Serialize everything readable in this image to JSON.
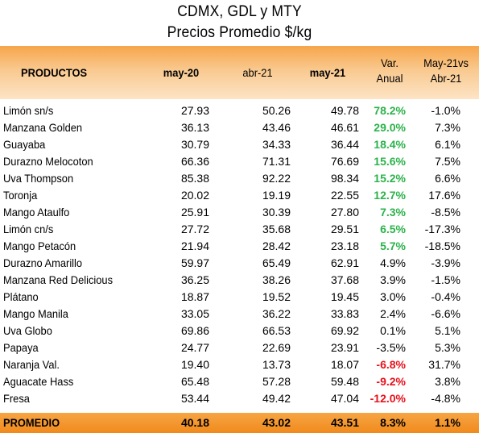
{
  "title": "CDMX, GDL y MTY",
  "subtitle": "Precios Promedio $/kg",
  "headers": {
    "products": "PRODUCTOS",
    "may20": "may-20",
    "abr21": "abr-21",
    "may21": "may-21",
    "var_line1": "Var.",
    "var_line2": "Anual",
    "mom_line1": "May-21vs",
    "mom_line2": "Abr-21"
  },
  "colors": {
    "positive": "#2bb34a",
    "negative": "#e8101a",
    "header_orange": "#f6a54a",
    "total_orange": "#f08a1c"
  },
  "rows": [
    {
      "name": "Limón sn/s",
      "may20": "27.93",
      "abr21": "50.26",
      "may21": "49.78",
      "var": "78.2%",
      "var_color": "pos",
      "mom": "-1.0%"
    },
    {
      "name": "Manzana Golden",
      "may20": "36.13",
      "abr21": "43.46",
      "may21": "46.61",
      "var": "29.0%",
      "var_color": "pos",
      "mom": "7.3%"
    },
    {
      "name": "Guayaba",
      "may20": "30.79",
      "abr21": "34.33",
      "may21": "36.44",
      "var": "18.4%",
      "var_color": "pos",
      "mom": "6.1%"
    },
    {
      "name": "Durazno Melocoton",
      "may20": "66.36",
      "abr21": "71.31",
      "may21": "76.69",
      "var": "15.6%",
      "var_color": "pos",
      "mom": "7.5%"
    },
    {
      "name": "Uva Thompson",
      "may20": "85.38",
      "abr21": "92.22",
      "may21": "98.34",
      "var": "15.2%",
      "var_color": "pos",
      "mom": "6.6%"
    },
    {
      "name": "Toronja",
      "may20": "20.02",
      "abr21": "19.19",
      "may21": "22.55",
      "var": "12.7%",
      "var_color": "pos",
      "mom": "17.6%"
    },
    {
      "name": "Mango Ataulfo",
      "may20": "25.91",
      "abr21": "30.39",
      "may21": "27.80",
      "var": "7.3%",
      "var_color": "pos",
      "mom": "-8.5%"
    },
    {
      "name": "Limón cn/s",
      "may20": "27.72",
      "abr21": "35.68",
      "may21": "29.51",
      "var": "6.5%",
      "var_color": "pos",
      "mom": "-17.3%"
    },
    {
      "name": "Mango Petacón",
      "may20": "21.94",
      "abr21": "28.42",
      "may21": "23.18",
      "var": "5.7%",
      "var_color": "pos",
      "mom": "-18.5%"
    },
    {
      "name": "Durazno Amarillo",
      "may20": "59.97",
      "abr21": "65.49",
      "may21": "62.91",
      "var": "4.9%",
      "var_color": "neu",
      "mom": "-3.9%"
    },
    {
      "name": "Manzana Red Delicious",
      "may20": "36.25",
      "abr21": "38.26",
      "may21": "37.68",
      "var": "3.9%",
      "var_color": "neu",
      "mom": "-1.5%"
    },
    {
      "name": "Plátano",
      "may20": "18.87",
      "abr21": "19.52",
      "may21": "19.45",
      "var": "3.0%",
      "var_color": "neu",
      "mom": "-0.4%"
    },
    {
      "name": "Mango Manila",
      "may20": "33.05",
      "abr21": "36.22",
      "may21": "33.83",
      "var": "2.4%",
      "var_color": "neu",
      "mom": "-6.6%"
    },
    {
      "name": "Uva Globo",
      "may20": "69.86",
      "abr21": "66.53",
      "may21": "69.92",
      "var": "0.1%",
      "var_color": "neu",
      "mom": "5.1%"
    },
    {
      "name": "Papaya",
      "may20": "24.77",
      "abr21": "22.69",
      "may21": "23.91",
      "var": "-3.5%",
      "var_color": "neu",
      "mom": "5.3%"
    },
    {
      "name": "Naranja Val.",
      "may20": "19.40",
      "abr21": "13.73",
      "may21": "18.07",
      "var": "-6.8%",
      "var_color": "neg",
      "mom": "31.7%"
    },
    {
      "name": "Aguacate Hass",
      "may20": "65.48",
      "abr21": "57.28",
      "may21": "59.48",
      "var": "-9.2%",
      "var_color": "neg",
      "mom": "3.8%"
    },
    {
      "name": "Fresa",
      "may20": "53.44",
      "abr21": "49.42",
      "may21": "47.04",
      "var": "-12.0%",
      "var_color": "neg",
      "mom": "-4.8%"
    }
  ],
  "total": {
    "name": "PROMEDIO",
    "may20": "40.18",
    "abr21": "43.02",
    "may21": "43.51",
    "var": "8.3%",
    "mom": "1.1%"
  }
}
